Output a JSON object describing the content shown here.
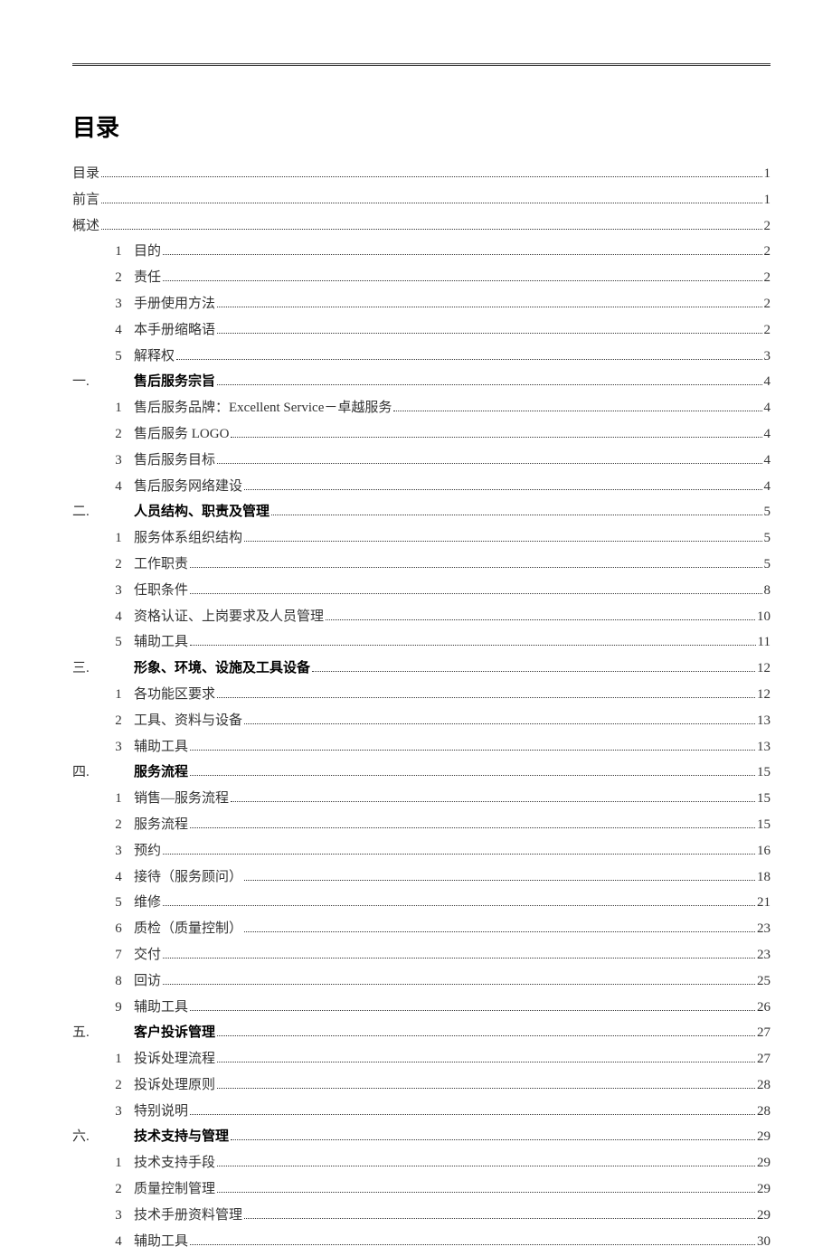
{
  "title": "目录",
  "colors": {
    "text": "#333333",
    "bold_text": "#000000",
    "background": "#ffffff",
    "rule": "#333333",
    "leader": "#333333"
  },
  "typography": {
    "title_family": "SimHei",
    "title_size_pt": 20,
    "body_family": "SimSun",
    "body_size_pt": 11,
    "section_heading_family": "SimHei",
    "section_heading_weight": "bold"
  },
  "toc": [
    {
      "level": 0,
      "num": "",
      "label": "目录",
      "page": "1"
    },
    {
      "level": 0,
      "num": "",
      "label": "前言",
      "page": "1"
    },
    {
      "level": 0,
      "num": "",
      "label": "概述",
      "page": "2"
    },
    {
      "level": 2,
      "num": "1",
      "label": "目的",
      "page": "2"
    },
    {
      "level": 2,
      "num": "2",
      "label": "责任",
      "page": "2"
    },
    {
      "level": 2,
      "num": "3",
      "label": "手册使用方法",
      "page": "2"
    },
    {
      "level": 2,
      "num": "4",
      "label": "本手册缩略语",
      "page": "2"
    },
    {
      "level": 2,
      "num": "5",
      "label": "解释权",
      "page": "3"
    },
    {
      "level": 1,
      "num": "一.",
      "label": "售后服务宗旨",
      "page": "4"
    },
    {
      "level": 2,
      "num": "1",
      "label": "售后服务品牌：Excellent Service－卓越服务",
      "page": "4"
    },
    {
      "level": 2,
      "num": "2",
      "label": "售后服务 LOGO",
      "page": "4"
    },
    {
      "level": 2,
      "num": "3",
      "label": "售后服务目标",
      "page": "4"
    },
    {
      "level": 2,
      "num": "4",
      "label": "售后服务网络建设",
      "page": "4"
    },
    {
      "level": 1,
      "num": "二.",
      "label": "人员结构、职责及管理",
      "page": "5"
    },
    {
      "level": 2,
      "num": "1",
      "label": "服务体系组织结构",
      "page": "5"
    },
    {
      "level": 2,
      "num": "2",
      "label": "工作职责",
      "page": "5"
    },
    {
      "level": 2,
      "num": "3",
      "label": "任职条件",
      "page": "8"
    },
    {
      "level": 2,
      "num": "4",
      "label": "资格认证、上岗要求及人员管理",
      "page": "10"
    },
    {
      "level": 2,
      "num": "5",
      "label": "辅助工具",
      "page": "11"
    },
    {
      "level": 1,
      "num": "三.",
      "label": "形象、环境、设施及工具设备",
      "page": "12"
    },
    {
      "level": 2,
      "num": "1",
      "label": "各功能区要求",
      "page": "12"
    },
    {
      "level": 2,
      "num": "2",
      "label": "工具、资料与设备",
      "page": "13"
    },
    {
      "level": 2,
      "num": "3",
      "label": "辅助工具",
      "page": "13"
    },
    {
      "level": 1,
      "num": "四.",
      "label": "服务流程",
      "page": "15"
    },
    {
      "level": 2,
      "num": "1",
      "label": "销售—服务流程",
      "page": "15"
    },
    {
      "level": 2,
      "num": "2",
      "label": "服务流程",
      "page": "15"
    },
    {
      "level": 2,
      "num": "3",
      "label": "预约",
      "page": "16"
    },
    {
      "level": 2,
      "num": "4",
      "label": "接待（服务顾问）",
      "page": "18"
    },
    {
      "level": 2,
      "num": "5",
      "label": "维修",
      "page": "21"
    },
    {
      "level": 2,
      "num": "6",
      "label": "质检（质量控制）",
      "page": "23"
    },
    {
      "level": 2,
      "num": "7",
      "label": "交付",
      "page": "23"
    },
    {
      "level": 2,
      "num": "8",
      "label": "回访",
      "page": "25"
    },
    {
      "level": 2,
      "num": "9",
      "label": "辅助工具",
      "page": "26"
    },
    {
      "level": 1,
      "num": "五.",
      "label": "客户投诉管理",
      "page": "27"
    },
    {
      "level": 2,
      "num": "1",
      "label": "投诉处理流程",
      "page": "27"
    },
    {
      "level": 2,
      "num": "2",
      "label": "投诉处理原则",
      "page": "28"
    },
    {
      "level": 2,
      "num": "3",
      "label": "特别说明",
      "page": "28"
    },
    {
      "level": 1,
      "num": "六.",
      "label": "技术支持与管理",
      "page": "29"
    },
    {
      "level": 2,
      "num": "1",
      "label": "技术支持手段",
      "page": "29"
    },
    {
      "level": 2,
      "num": "2",
      "label": "质量控制管理",
      "page": "29"
    },
    {
      "level": 2,
      "num": "3",
      "label": "技术手册资料管理",
      "page": "29"
    },
    {
      "level": 2,
      "num": "4",
      "label": "辅助工具",
      "page": "30"
    }
  ]
}
